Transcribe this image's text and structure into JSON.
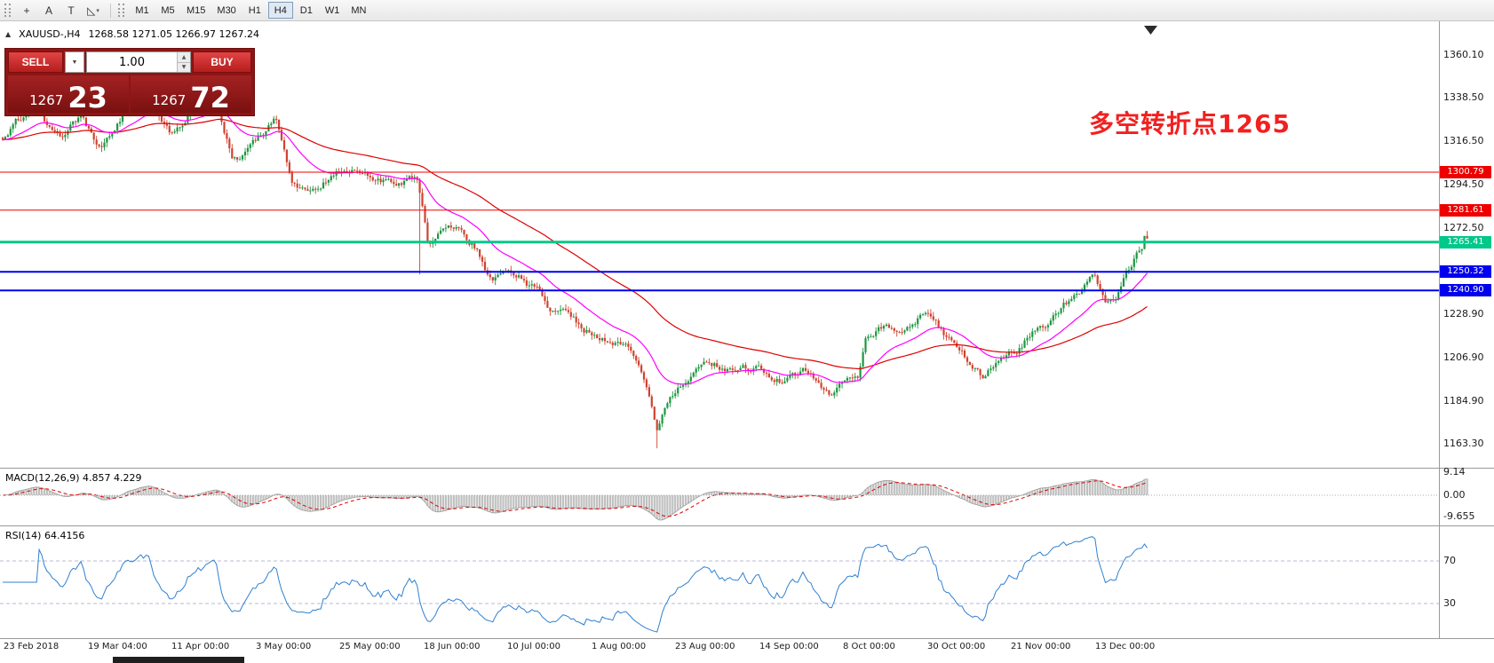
{
  "toolbar": {
    "tools": [
      {
        "id": "crosshair",
        "glyph": "+",
        "caret": false
      },
      {
        "id": "text-label",
        "glyph": "A",
        "caret": false
      },
      {
        "id": "text-frame",
        "glyph": "T",
        "caret": false
      },
      {
        "id": "draw-objects",
        "glyph": "◺",
        "caret": true
      }
    ],
    "timeframes": [
      "M1",
      "M5",
      "M15",
      "M30",
      "H1",
      "H4",
      "D1",
      "W1",
      "MN"
    ],
    "active_timeframe": "H4"
  },
  "chart": {
    "title": "XAUUSD-,H4",
    "title_icon": "▲",
    "ohlc_text": "1268.58 1271.05 1266.97 1267.24",
    "annotation": "多空转折点1265",
    "annotation_color": "#f22020",
    "trade_panel": {
      "sell_label": "SELL",
      "buy_label": "BUY",
      "volume": "1.00",
      "dropdown_glyph": "▼",
      "spinner_up_glyph": "▲",
      "spinner_down_glyph": "▼",
      "bid_small": "1267",
      "bid_big": "23",
      "ask_small": "1267",
      "ask_big": "72"
    },
    "price_axis": [
      "1360.10",
      "1338.50",
      "1316.50",
      "1294.50",
      "1272.50",
      "1228.90",
      "1206.90",
      "1184.90",
      "1163.30"
    ],
    "hlines": [
      {
        "price": "1300.79",
        "color": "#ee0000",
        "thickness": 1
      },
      {
        "price": "1281.61",
        "color": "#ee0000",
        "thickness": 1
      },
      {
        "price": "1265.41",
        "color": "#00c88a",
        "thickness": 3
      },
      {
        "price": "1250.32",
        "color": "#0000ee",
        "thickness": 2
      },
      {
        "price": "1240.90",
        "color": "#0000ee",
        "thickness": 2
      }
    ],
    "date_axis": [
      "23 Feb 2018",
      "19 Mar 04:00",
      "11 Apr 00:00",
      "3 May 00:00",
      "25 May 00:00",
      "18 Jun 00:00",
      "10 Jul 00:00",
      "1 Aug 00:00",
      "23 Aug 00:00",
      "14 Sep 00:00",
      "8 Oct 00:00",
      "30 Oct 00:00",
      "21 Nov 00:00",
      "13 Dec 00:00"
    ]
  },
  "indicators": {
    "macd": {
      "label": "MACD(12,26,9) 4.857 4.229",
      "axis_labels": [
        "9.14",
        "0.00",
        "-9.655"
      ]
    },
    "rsi": {
      "label": "RSI(14) 64.4156",
      "level_labels": [
        "70",
        "30"
      ]
    }
  },
  "chart_data": {
    "type": "candlestick",
    "symbol": "XAUUSD-",
    "timeframe": "H4",
    "current_bar": {
      "open": 1268.58,
      "high": 1271.05,
      "low": 1266.97,
      "close": 1267.24
    },
    "bid": "1267.23",
    "ask": "1267.72",
    "y_axis": {
      "max": 1360.1,
      "min": 1163.3
    },
    "colors": {
      "up": "#1e9641",
      "down": "#cf4330",
      "ma_fast": "#ff00ff",
      "ma_slow": "#dd0000"
    },
    "horizontal_levels": [
      1300.79,
      1281.61,
      1265.41,
      1250.32,
      1240.9
    ],
    "price_path": [
      [
        0,
        1318
      ],
      [
        0.012,
        1327
      ],
      [
        0.03,
        1334
      ],
      [
        0.05,
        1318
      ],
      [
        0.068,
        1329
      ],
      [
        0.085,
        1312
      ],
      [
        0.105,
        1331
      ],
      [
        0.128,
        1340
      ],
      [
        0.147,
        1321
      ],
      [
        0.165,
        1331
      ],
      [
        0.186,
        1336
      ],
      [
        0.2,
        1308
      ],
      [
        0.215,
        1311
      ],
      [
        0.238,
        1328
      ],
      [
        0.252,
        1297
      ],
      [
        0.268,
        1291
      ],
      [
        0.29,
        1301
      ],
      [
        0.315,
        1302
      ],
      [
        0.34,
        1297
      ],
      [
        0.362,
        1297
      ],
      [
        0.372,
        1263
      ],
      [
        0.386,
        1274
      ],
      [
        0.402,
        1270
      ],
      [
        0.415,
        1263
      ],
      [
        0.427,
        1246
      ],
      [
        0.442,
        1252
      ],
      [
        0.455,
        1248
      ],
      [
        0.467,
        1241
      ],
      [
        0.48,
        1229
      ],
      [
        0.492,
        1232
      ],
      [
        0.507,
        1222
      ],
      [
        0.522,
        1218
      ],
      [
        0.537,
        1214
      ],
      [
        0.549,
        1211
      ],
      [
        0.557,
        1199
      ],
      [
        0.565,
        1183
      ],
      [
        0.572,
        1168
      ],
      [
        0.58,
        1183
      ],
      [
        0.592,
        1193
      ],
      [
        0.607,
        1199
      ],
      [
        0.622,
        1203
      ],
      [
        0.64,
        1198
      ],
      [
        0.66,
        1202
      ],
      [
        0.68,
        1196
      ],
      [
        0.7,
        1201
      ],
      [
        0.714,
        1192
      ],
      [
        0.724,
        1188
      ],
      [
        0.737,
        1197
      ],
      [
        0.748,
        1195
      ],
      [
        0.754,
        1216
      ],
      [
        0.768,
        1223
      ],
      [
        0.782,
        1219
      ],
      [
        0.796,
        1227
      ],
      [
        0.808,
        1231
      ],
      [
        0.822,
        1219
      ],
      [
        0.836,
        1211
      ],
      [
        0.85,
        1201
      ],
      [
        0.858,
        1196
      ],
      [
        0.872,
        1209
      ],
      [
        0.886,
        1213
      ],
      [
        0.9,
        1221
      ],
      [
        0.914,
        1225
      ],
      [
        0.928,
        1233
      ],
      [
        0.944,
        1243
      ],
      [
        0.953,
        1249
      ],
      [
        0.963,
        1233
      ],
      [
        0.973,
        1237
      ],
      [
        0.983,
        1249
      ],
      [
        0.992,
        1259
      ],
      [
        1,
        1267.5
      ]
    ],
    "spikes": [
      {
        "f": 0.3655,
        "low": 1249
      },
      {
        "f": 0.571,
        "low": 1161
      }
    ]
  }
}
